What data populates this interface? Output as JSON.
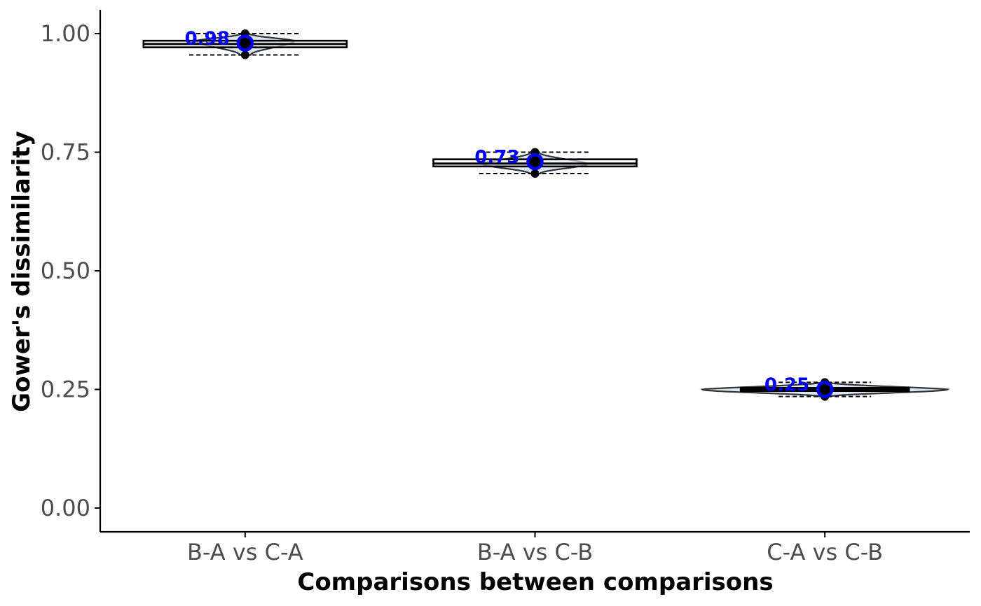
{
  "chart_data": {
    "type": "violin",
    "xlabel": "Comparisons between comparisons",
    "ylabel": "Gower's dissimilarity",
    "ylim": [
      -0.05,
      1.05
    ],
    "yticks": [
      0.0,
      0.25,
      0.5,
      0.75,
      1.0
    ],
    "ytick_labels": [
      "0.00",
      "0.25",
      "0.50",
      "0.75",
      "1.00"
    ],
    "grid": false,
    "legend": "none",
    "categories": [
      "B-A vs C-A",
      "B-A vs C-B",
      "C-A vs C-B"
    ],
    "groups": [
      {
        "category": "B-A vs C-A",
        "min": 0.955,
        "q1": 0.971,
        "median": 0.978,
        "q3": 0.985,
        "max": 1.0,
        "mean": 0.98,
        "mean_label": "0.98",
        "points": [
          0.955,
          1.0
        ]
      },
      {
        "category": "B-A vs C-B",
        "min": 0.705,
        "q1": 0.72,
        "median": 0.726,
        "q3": 0.735,
        "max": 0.75,
        "mean": 0.73,
        "mean_label": "0.73",
        "points": [
          0.705,
          0.75
        ]
      },
      {
        "category": "C-A vs C-B",
        "min": 0.235,
        "q1": 0.247,
        "median": 0.25,
        "q3": 0.253,
        "max": 0.265,
        "mean": 0.25,
        "mean_label": "0.25",
        "points": [
          0.235,
          0.265
        ]
      }
    ],
    "colors": {
      "violin_fill": "#dde8f5",
      "mean_marker": "#0000ff",
      "axis": "#000000",
      "tick_text": "#4d4d4d"
    }
  }
}
